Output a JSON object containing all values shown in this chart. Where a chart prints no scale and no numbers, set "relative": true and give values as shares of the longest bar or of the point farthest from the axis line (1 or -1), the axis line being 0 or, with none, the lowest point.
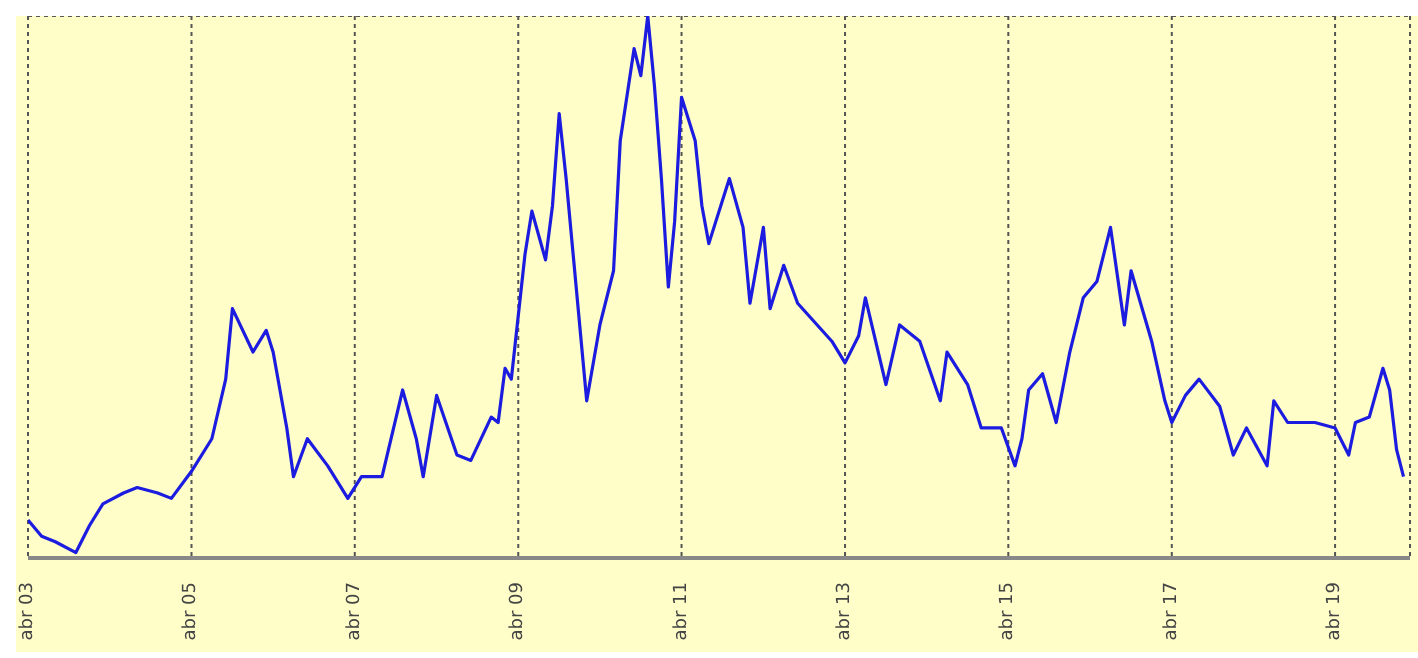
{
  "chart_data": {
    "type": "line",
    "relative": true,
    "grid": true,
    "legend": false,
    "marker": "none",
    "line_style": "solid",
    "xlim": [
      "2003-04",
      "2020-03"
    ],
    "xticks": [
      {
        "value": "2003-04",
        "label": "abr 03"
      },
      {
        "value": "2005-04",
        "label": "abr 05"
      },
      {
        "value": "2007-04",
        "label": "abr 07"
      },
      {
        "value": "2009-04",
        "label": "abr 09"
      },
      {
        "value": "2011-04",
        "label": "abr 11"
      },
      {
        "value": "2013-04",
        "label": "abr 13"
      },
      {
        "value": "2015-04",
        "label": "abr 15"
      },
      {
        "value": "2017-04",
        "label": "abr 17"
      },
      {
        "value": "2019-04",
        "label": "abr 19"
      }
    ],
    "x": [
      "2003-04",
      "2003-06",
      "2003-08",
      "2003-11",
      "2004-01",
      "2004-03",
      "2004-06",
      "2004-08",
      "2004-11",
      "2005-01",
      "2005-04",
      "2005-07",
      "2005-09",
      "2005-10",
      "2006-01",
      "2006-03",
      "2006-04",
      "2006-06",
      "2006-07",
      "2006-09",
      "2006-12",
      "2007-03",
      "2007-05",
      "2007-08",
      "2007-11",
      "2008-01",
      "2008-02",
      "2008-04",
      "2008-07",
      "2008-09",
      "2008-12",
      "2009-01",
      "2009-02",
      "2009-03",
      "2009-05",
      "2009-06",
      "2009-08",
      "2009-09",
      "2009-10",
      "2009-11",
      "2010-02",
      "2010-04",
      "2010-06",
      "2010-07",
      "2010-09",
      "2010-10",
      "2010-11",
      "2010-12",
      "2011-01",
      "2011-02",
      "2011-03",
      "2011-04",
      "2011-06",
      "2011-07",
      "2011-08",
      "2011-11",
      "2012-01",
      "2012-02",
      "2012-04",
      "2012-05",
      "2012-07",
      "2012-09",
      "2013-02",
      "2013-04",
      "2013-06",
      "2013-07",
      "2013-10",
      "2013-12",
      "2014-03",
      "2014-06",
      "2014-07",
      "2014-10",
      "2014-12",
      "2015-03",
      "2015-05",
      "2015-06",
      "2015-07",
      "2015-09",
      "2015-11",
      "2016-01",
      "2016-03",
      "2016-05",
      "2016-07",
      "2016-09",
      "2016-10",
      "2017-01",
      "2017-03",
      "2017-04",
      "2017-06",
      "2017-08",
      "2017-11",
      "2018-01",
      "2018-03",
      "2018-06",
      "2018-07",
      "2018-09",
      "2019-01",
      "2019-04",
      "2019-06",
      "2019-07",
      "2019-09",
      "2019-11",
      "2019-12",
      "2020-01",
      "2020-02"
    ],
    "series": [
      {
        "color": "#1c1ce0",
        "values": [
          0.07,
          0.04,
          0.03,
          0.01,
          0.06,
          0.1,
          0.12,
          0.13,
          0.12,
          0.11,
          0.16,
          0.22,
          0.33,
          0.46,
          0.38,
          0.42,
          0.38,
          0.24,
          0.15,
          0.22,
          0.17,
          0.11,
          0.15,
          0.15,
          0.31,
          0.22,
          0.15,
          0.3,
          0.19,
          0.18,
          0.26,
          0.25,
          0.35,
          0.33,
          0.56,
          0.64,
          0.55,
          0.65,
          0.82,
          0.7,
          0.29,
          0.43,
          0.53,
          0.77,
          0.94,
          0.89,
          1.0,
          0.87,
          0.7,
          0.5,
          0.62,
          0.85,
          0.77,
          0.65,
          0.58,
          0.7,
          0.61,
          0.47,
          0.61,
          0.46,
          0.54,
          0.47,
          0.4,
          0.36,
          0.41,
          0.48,
          0.32,
          0.43,
          0.4,
          0.29,
          0.38,
          0.32,
          0.24,
          0.24,
          0.17,
          0.22,
          0.31,
          0.34,
          0.25,
          0.38,
          0.48,
          0.51,
          0.61,
          0.43,
          0.53,
          0.4,
          0.29,
          0.25,
          0.3,
          0.33,
          0.28,
          0.19,
          0.24,
          0.17,
          0.29,
          0.25,
          0.25,
          0.24,
          0.19,
          0.25,
          0.26,
          0.35,
          0.31,
          0.2,
          0.15
        ]
      }
    ]
  }
}
